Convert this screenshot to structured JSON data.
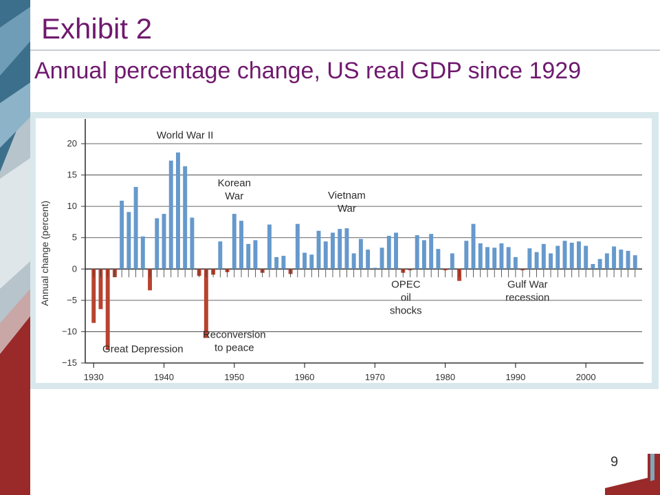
{
  "slide": {
    "title": "Exhibit 2",
    "subtitle": "Annual percentage change, US real GDP since 1929",
    "page_number": "9"
  },
  "colors": {
    "title": "#6f1a6e",
    "positive_bar": "#6699cc",
    "negative_bar": "#b8432f",
    "grid": "#333333",
    "chart_background": "#ffffff",
    "frame": "#d9e8ec"
  },
  "chart_data": {
    "type": "bar",
    "title": "",
    "xlabel": "",
    "ylabel": "Annual change (percent)",
    "ylim": [
      -15,
      25
    ],
    "yticks": [
      -15,
      -10,
      -5,
      0,
      5,
      10,
      15,
      20
    ],
    "xticks": [
      1930,
      1940,
      1950,
      1960,
      1970,
      1980,
      1990,
      2000
    ],
    "xlim": [
      1929,
      2008
    ],
    "grid": true,
    "x": [
      1930,
      1931,
      1932,
      1933,
      1934,
      1935,
      1936,
      1937,
      1938,
      1939,
      1940,
      1941,
      1942,
      1943,
      1944,
      1945,
      1946,
      1947,
      1948,
      1949,
      1950,
      1951,
      1952,
      1953,
      1954,
      1955,
      1956,
      1957,
      1958,
      1959,
      1960,
      1961,
      1962,
      1963,
      1964,
      1965,
      1966,
      1967,
      1968,
      1969,
      1970,
      1971,
      1972,
      1973,
      1974,
      1975,
      1976,
      1977,
      1978,
      1979,
      1980,
      1981,
      1982,
      1983,
      1984,
      1985,
      1986,
      1987,
      1988,
      1989,
      1990,
      1991,
      1992,
      1993,
      1994,
      1995,
      1996,
      1997,
      1998,
      1999,
      2000,
      2001,
      2002,
      2003,
      2004,
      2005,
      2006,
      2007
    ],
    "values": [
      -8.6,
      -6.4,
      -12.9,
      -1.3,
      10.9,
      9.1,
      13.1,
      5.2,
      -3.4,
      8.1,
      8.8,
      17.3,
      18.6,
      16.4,
      8.2,
      -1.1,
      -11.0,
      -0.9,
      4.4,
      -0.5,
      8.8,
      7.7,
      4.0,
      4.6,
      -0.6,
      7.1,
      1.9,
      2.1,
      -0.8,
      7.2,
      2.6,
      2.3,
      6.1,
      4.4,
      5.8,
      6.4,
      6.5,
      2.5,
      4.8,
      3.1,
      0.2,
      3.4,
      5.3,
      5.8,
      -0.6,
      -0.2,
      5.4,
      4.6,
      5.6,
      3.2,
      -0.2,
      2.5,
      -1.9,
      4.5,
      7.2,
      4.1,
      3.5,
      3.4,
      4.1,
      3.5,
      1.9,
      -0.2,
      3.3,
      2.7,
      4.0,
      2.5,
      3.7,
      4.5,
      4.2,
      4.4,
      3.7,
      0.8,
      1.6,
      2.5,
      3.6,
      3.1,
      2.9,
      2.2
    ],
    "annotations": [
      {
        "lines": [
          "World War II"
        ],
        "x": 1943,
        "y": 20.8
      },
      {
        "lines": [
          "Korean",
          "War"
        ],
        "x": 1950,
        "y": 13.2
      },
      {
        "lines": [
          "Vietnam",
          "War"
        ],
        "x": 1966,
        "y": 11.2
      },
      {
        "lines": [
          "OPEC",
          "oil",
          "shocks"
        ],
        "x": 1974.4,
        "y": -3.0
      },
      {
        "lines": [
          "Gulf War",
          "recession"
        ],
        "x": 1991.7,
        "y": -3.0
      },
      {
        "lines": [
          "Reconversion",
          "to peace"
        ],
        "x": 1950,
        "y": -11.0
      },
      {
        "lines": [
          "Great Depression"
        ],
        "x": 1937,
        "y": -13.3
      }
    ]
  }
}
